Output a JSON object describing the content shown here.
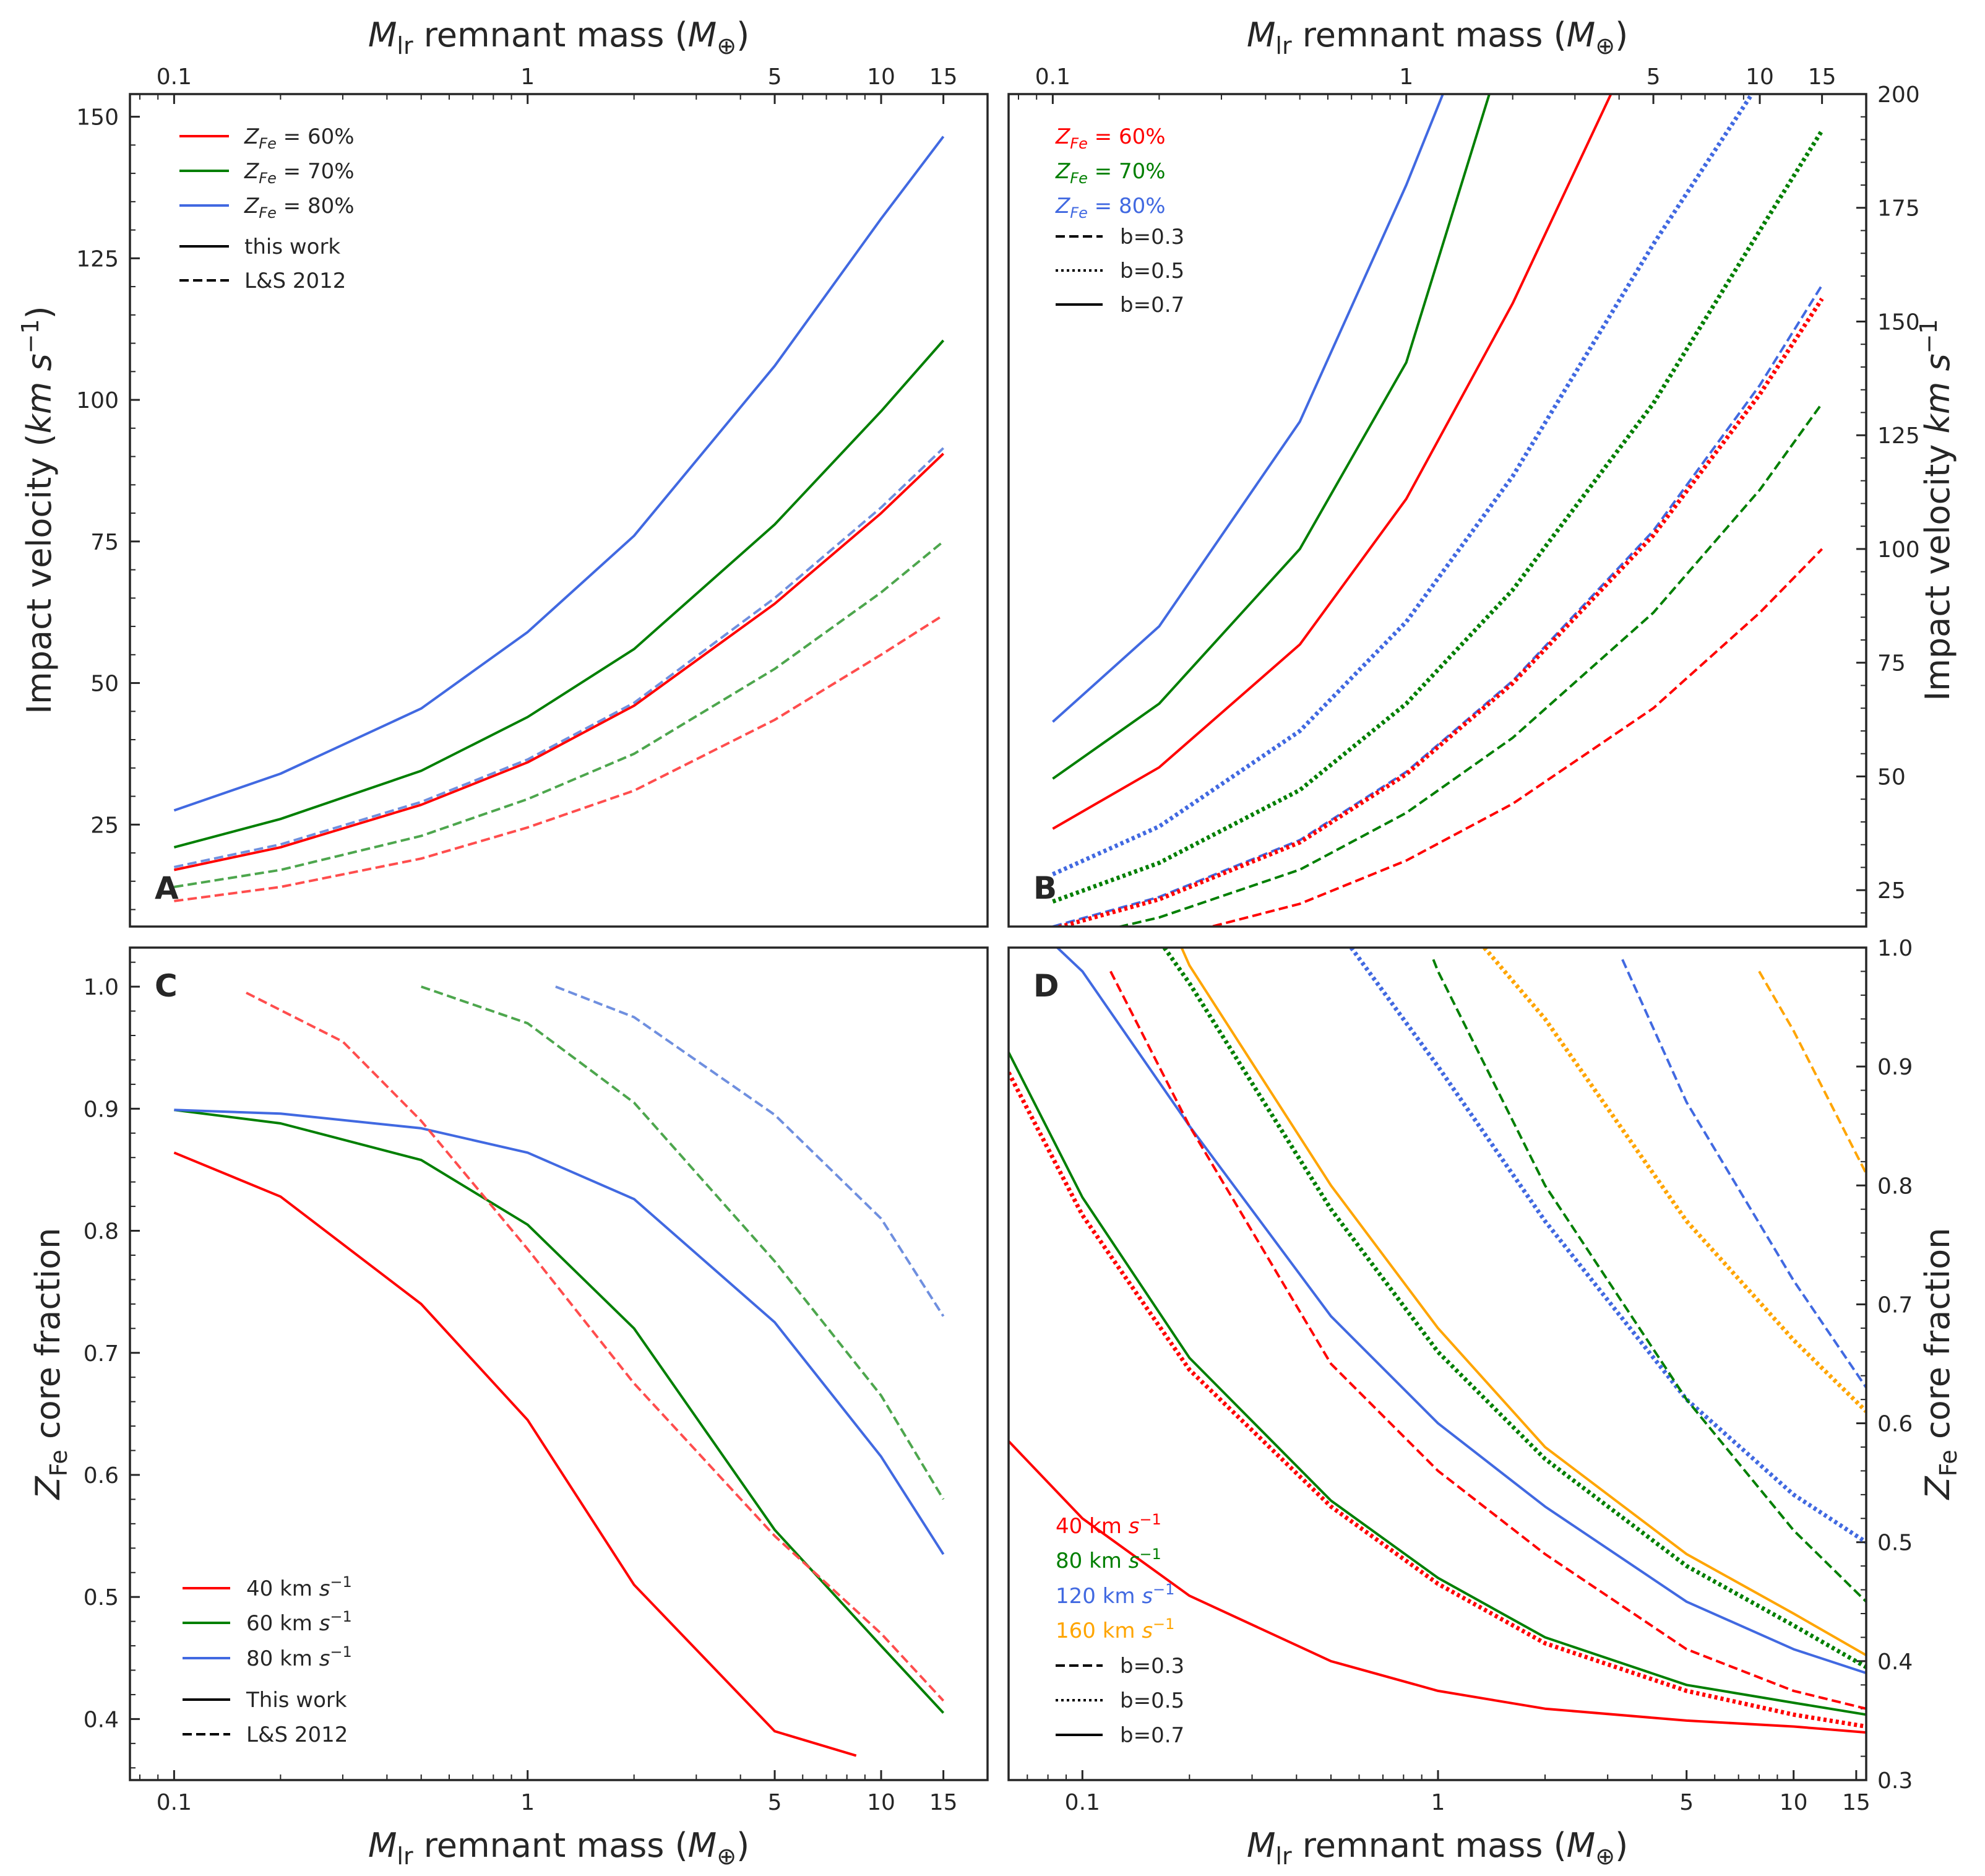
{
  "chart_data": [
    {
      "panel": "A",
      "type": "line",
      "xscale": "log",
      "xlabel": "M_lr remnant mass (M_⊕)",
      "ylabel": "Impact velocity (km s^-1)",
      "xlim": [
        0.075,
        20
      ],
      "ylim": [
        7,
        154
      ],
      "x_ticks": [
        0.1,
        1,
        5,
        10,
        15
      ],
      "x_tick_labels": [
        "0.1",
        "1",
        "5",
        "10",
        "15"
      ],
      "y_ticks": [
        25,
        50,
        75,
        100,
        125,
        150
      ],
      "y_tick_labels": [
        "25",
        "50",
        "75",
        "100",
        "125",
        "150"
      ],
      "legend": {
        "placement": "top-left",
        "entries": [
          {
            "label": "Z_Fe = 60%",
            "color": "#ff0000",
            "style": "solid"
          },
          {
            "label": "Z_Fe = 70%",
            "color": "#007f00",
            "style": "solid"
          },
          {
            "label": "Z_Fe = 80%",
            "color": "#4169e1",
            "style": "solid"
          },
          {
            "label": "this work",
            "color": "#000000",
            "style": "solid"
          },
          {
            "label": "L&S 2012",
            "color": "#000000",
            "style": "dashed"
          }
        ]
      },
      "series": [
        {
          "color": "#4169e1",
          "style": "solid",
          "x": [
            0.1,
            0.2,
            0.5,
            1,
            2,
            5,
            10,
            15
          ],
          "y": [
            27.5,
            34.0,
            45.5,
            59.0,
            76.0,
            106.0,
            132.0,
            146.5
          ]
        },
        {
          "color": "#007f00",
          "style": "solid",
          "x": [
            0.1,
            0.2,
            0.5,
            1,
            2,
            5,
            10,
            15
          ],
          "y": [
            21.0,
            26.0,
            34.5,
            44.0,
            56.0,
            78.0,
            98.0,
            110.5
          ]
        },
        {
          "color": "#ff0000",
          "style": "solid",
          "x": [
            0.1,
            0.2,
            0.5,
            1,
            2,
            5,
            10,
            15
          ],
          "y": [
            17.0,
            21.0,
            28.5,
            36.0,
            46.0,
            64.0,
            80.0,
            90.5
          ]
        },
        {
          "color": "#6f8fdf",
          "style": "dashed",
          "x": [
            0.1,
            0.2,
            0.5,
            1,
            2,
            5,
            10,
            15
          ],
          "y": [
            17.5,
            21.5,
            29.0,
            36.5,
            46.5,
            65.0,
            81.0,
            91.5
          ]
        },
        {
          "color": "#4da64d",
          "style": "dashed",
          "x": [
            0.1,
            0.2,
            0.5,
            1,
            2,
            5,
            10,
            15
          ],
          "y": [
            14.0,
            17.0,
            23.0,
            29.5,
            37.5,
            52.5,
            66.0,
            75.0
          ]
        },
        {
          "color": "#ff4d4d",
          "style": "dashed",
          "x": [
            0.1,
            0.2,
            0.5,
            1,
            2,
            5,
            10,
            15
          ],
          "y": [
            11.5,
            14.0,
            19.0,
            24.5,
            31.0,
            43.5,
            55.0,
            62.0
          ]
        }
      ],
      "annotations": [
        "A"
      ]
    },
    {
      "panel": "B",
      "type": "line",
      "xscale": "log",
      "xlabel": "M_lr remnant mass (M_⊕)",
      "ylabel": "Impact velocity km s^-1",
      "xlim": [
        0.075,
        20
      ],
      "ylim": [
        17,
        200
      ],
      "x_ticks": [
        0.1,
        1,
        5,
        10,
        15
      ],
      "x_tick_labels": [
        "0.1",
        "1",
        "5",
        "10",
        "15"
      ],
      "y_ticks": [
        25,
        50,
        75,
        100,
        125,
        150,
        175,
        200
      ],
      "y_tick_labels": [
        "25",
        "50",
        "75",
        "100",
        "125",
        "150",
        "175",
        "200"
      ],
      "legend": {
        "placement": "top-left",
        "entries": [
          {
            "label": "Z_Fe = 60%",
            "color": "#ff0000",
            "style": "text"
          },
          {
            "label": "Z_Fe = 70%",
            "color": "#007f00",
            "style": "text"
          },
          {
            "label": "Z_Fe = 80%",
            "color": "#4169e1",
            "style": "text"
          },
          {
            "label": "b=0.3",
            "color": "#000000",
            "style": "dashed"
          },
          {
            "label": "b=0.5",
            "color": "#000000",
            "style": "dotted"
          },
          {
            "label": "b=0.7",
            "color": "#000000",
            "style": "solid"
          }
        ]
      },
      "series": [
        {
          "color": "#4169e1",
          "style": "solid",
          "x": [
            0.1,
            0.2,
            0.5,
            1,
            1.3
          ],
          "y": [
            62,
            83,
            128,
            180,
            202
          ]
        },
        {
          "color": "#007f00",
          "style": "solid",
          "x": [
            0.1,
            0.2,
            0.5,
            1,
            1.75
          ],
          "y": [
            49.5,
            66,
            100,
            141,
            202
          ]
        },
        {
          "color": "#ff0000",
          "style": "solid",
          "x": [
            0.1,
            0.2,
            0.5,
            1,
            2,
            3.9
          ],
          "y": [
            38.5,
            52,
            79,
            111,
            154,
            202
          ]
        },
        {
          "color": "#4169e1",
          "style": "dotted",
          "x": [
            0.1,
            0.2,
            0.5,
            1,
            2,
            5,
            9.5
          ],
          "y": [
            28.5,
            39,
            60,
            84,
            116,
            167,
            200
          ]
        },
        {
          "color": "#007f00",
          "style": "dotted",
          "x": [
            0.1,
            0.2,
            0.5,
            1,
            2,
            5,
            10,
            15
          ],
          "y": [
            22.5,
            31,
            47,
            66,
            91,
            132,
            170,
            192
          ]
        },
        {
          "color": "#4169e1",
          "style": "dashed",
          "x": [
            0.1,
            0.2,
            0.5,
            1,
            2,
            5,
            10,
            15
          ],
          "y": [
            17,
            23.5,
            36,
            51,
            71,
            104,
            136,
            158
          ]
        },
        {
          "color": "#ff0000",
          "style": "dotted",
          "x": [
            0.1,
            0.2,
            0.5,
            1,
            2,
            5,
            10,
            15
          ],
          "y": [
            16.5,
            23,
            35.5,
            50.5,
            70.5,
            103,
            134,
            155
          ]
        },
        {
          "color": "#007f00",
          "style": "dashed",
          "x": [
            0.1,
            0.2,
            0.5,
            1,
            2,
            5,
            10,
            15
          ],
          "y": [
            13.5,
            19,
            29.5,
            42,
            58.5,
            86,
            113,
            132
          ]
        },
        {
          "color": "#ff0000",
          "style": "dashed",
          "x": [
            0.1,
            0.2,
            0.5,
            1,
            2,
            5,
            10,
            15
          ],
          "y": [
            10,
            14,
            22,
            31.5,
            44,
            65,
            86,
            100
          ]
        }
      ],
      "annotations": [
        "B"
      ]
    },
    {
      "panel": "C",
      "type": "line",
      "xscale": "log",
      "xlabel": "M_lr remnant mass (M_⊕)",
      "ylabel": "Z_Fe core fraction",
      "xlim": [
        0.075,
        20
      ],
      "ylim": [
        0.35,
        1.032
      ],
      "x_ticks": [
        0.1,
        1,
        5,
        10,
        15
      ],
      "x_tick_labels": [
        "0.1",
        "1",
        "5",
        "10",
        "15"
      ],
      "y_ticks": [
        0.4,
        0.5,
        0.6,
        0.7,
        0.8,
        0.9,
        1.0
      ],
      "y_tick_labels": [
        "0.4",
        "0.5",
        "0.6",
        "0.7",
        "0.8",
        "0.9",
        "1.0"
      ],
      "legend": {
        "placement": "bottom-left",
        "entries": [
          {
            "label": "40 km s^-1",
            "color": "#ff0000",
            "style": "solid"
          },
          {
            "label": "60 km s^-1",
            "color": "#007f00",
            "style": "solid"
          },
          {
            "label": "80 km s^-1",
            "color": "#4169e1",
            "style": "solid"
          },
          {
            "label": "This work",
            "color": "#000000",
            "style": "solid"
          },
          {
            "label": "L&S 2012",
            "color": "#000000",
            "style": "dashed"
          }
        ]
      },
      "series": [
        {
          "color": "#ff0000",
          "style": "solid",
          "x": [
            0.1,
            0.2,
            0.5,
            1,
            2,
            5,
            8.5
          ],
          "y": [
            0.864,
            0.828,
            0.74,
            0.645,
            0.51,
            0.39,
            0.37
          ]
        },
        {
          "color": "#007f00",
          "style": "solid",
          "x": [
            0.1,
            0.2,
            0.5,
            1,
            2,
            5,
            10,
            15
          ],
          "y": [
            0.899,
            0.888,
            0.858,
            0.805,
            0.72,
            0.555,
            0.46,
            0.405
          ]
        },
        {
          "color": "#4169e1",
          "style": "solid",
          "x": [
            0.1,
            0.2,
            0.5,
            1,
            2,
            5,
            10,
            15
          ],
          "y": [
            0.899,
            0.896,
            0.884,
            0.864,
            0.826,
            0.725,
            0.615,
            0.535
          ]
        },
        {
          "color": "#ff4d4d",
          "style": "dashed",
          "x": [
            0.16,
            0.3,
            0.5,
            1,
            2,
            5,
            10,
            15
          ],
          "y": [
            0.995,
            0.955,
            0.89,
            0.785,
            0.675,
            0.55,
            0.47,
            0.415
          ]
        },
        {
          "color": "#4da64d",
          "style": "dashed",
          "x": [
            0.5,
            1,
            2,
            5,
            10,
            15
          ],
          "y": [
            1.0,
            0.97,
            0.905,
            0.775,
            0.665,
            0.58
          ]
        },
        {
          "color": "#6f8fdf",
          "style": "dashed",
          "x": [
            1.2,
            2,
            5,
            10,
            15
          ],
          "y": [
            1.0,
            0.975,
            0.895,
            0.81,
            0.73
          ]
        }
      ],
      "annotations": [
        "C"
      ]
    },
    {
      "panel": "D",
      "type": "line",
      "xscale": "log",
      "xlabel": "M_lr remnant mass (M_⊕)",
      "ylabel": "Z_Fe core fraction",
      "xlim": [
        0.062,
        16
      ],
      "ylim": [
        0.3,
        1.0
      ],
      "x_ticks": [
        0.1,
        1,
        5,
        10,
        15
      ],
      "x_tick_labels": [
        "0.1",
        "1",
        "5",
        "10",
        "15"
      ],
      "y_ticks": [
        0.3,
        0.4,
        0.5,
        0.6,
        0.7,
        0.8,
        0.9,
        1.0
      ],
      "y_tick_labels": [
        "0.3",
        "0.4",
        "0.5",
        "0.6",
        "0.7",
        "0.8",
        "0.9",
        "1.0"
      ],
      "legend": {
        "placement": "bottom-left",
        "entries": [
          {
            "label": "40 km s^-1",
            "color": "#ff0000",
            "style": "text"
          },
          {
            "label": "80 km s^-1",
            "color": "#007f00",
            "style": "text"
          },
          {
            "label": "120 km s^-1",
            "color": "#4169e1",
            "style": "text"
          },
          {
            "label": "160 km s^-1",
            "color": "#ffa500",
            "style": "text"
          },
          {
            "label": "b=0.3",
            "color": "#000000",
            "style": "dashed"
          },
          {
            "label": "b=0.5",
            "color": "#000000",
            "style": "dotted"
          },
          {
            "label": "b=0.7",
            "color": "#000000",
            "style": "solid"
          }
        ]
      },
      "series": [
        {
          "color": "#ff0000",
          "style": "solid",
          "x": [
            0.062,
            0.1,
            0.2,
            0.5,
            1,
            2,
            5,
            10,
            16
          ],
          "y": [
            0.585,
            0.52,
            0.455,
            0.4,
            0.375,
            0.36,
            0.35,
            0.345,
            0.34
          ]
        },
        {
          "color": "#ff0000",
          "style": "dotted",
          "x": [
            0.062,
            0.1,
            0.2,
            0.5,
            1,
            2,
            5,
            10,
            16
          ],
          "y": [
            0.895,
            0.775,
            0.645,
            0.53,
            0.465,
            0.415,
            0.375,
            0.355,
            0.345
          ]
        },
        {
          "color": "#007f00",
          "style": "solid",
          "x": [
            0.062,
            0.1,
            0.2,
            0.5,
            1,
            2,
            5,
            10,
            16
          ],
          "y": [
            0.912,
            0.79,
            0.655,
            0.535,
            0.47,
            0.42,
            0.38,
            0.365,
            0.355
          ]
        },
        {
          "color": "#4169e1",
          "style": "solid",
          "x": [
            0.085,
            0.1,
            0.2,
            0.5,
            1,
            2,
            5,
            10,
            16
          ],
          "y": [
            1.0,
            0.98,
            0.85,
            0.69,
            0.6,
            0.53,
            0.45,
            0.41,
            0.39
          ]
        },
        {
          "color": "#ff0000",
          "style": "dashed",
          "x": [
            0.12,
            0.2,
            0.5,
            1,
            2,
            5,
            10,
            16
          ],
          "y": [
            0.98,
            0.85,
            0.65,
            0.56,
            0.49,
            0.41,
            0.375,
            0.36
          ]
        },
        {
          "color": "#007f00",
          "style": "dotted",
          "x": [
            0.17,
            0.2,
            0.5,
            1,
            2,
            5,
            10,
            16
          ],
          "y": [
            1.0,
            0.97,
            0.78,
            0.66,
            0.57,
            0.48,
            0.43,
            0.395
          ]
        },
        {
          "color": "#ffa500",
          "style": "solid",
          "x": [
            0.19,
            0.2,
            0.5,
            1,
            2,
            5,
            10,
            16
          ],
          "y": [
            1.0,
            0.985,
            0.8,
            0.68,
            0.58,
            0.49,
            0.44,
            0.405
          ]
        },
        {
          "color": "#4169e1",
          "style": "dotted",
          "x": [
            0.57,
            1,
            2,
            5,
            10,
            16
          ],
          "y": [
            1.0,
            0.9,
            0.77,
            0.62,
            0.54,
            0.5
          ]
        },
        {
          "color": "#007f00",
          "style": "dashed",
          "x": [
            0.97,
            1,
            2,
            5,
            10,
            16
          ],
          "y": [
            0.99,
            0.98,
            0.8,
            0.62,
            0.51,
            0.45
          ]
        },
        {
          "color": "#ffa500",
          "style": "dotted",
          "x": [
            1.35,
            2,
            5,
            10,
            16
          ],
          "y": [
            1.0,
            0.94,
            0.77,
            0.67,
            0.61
          ]
        },
        {
          "color": "#4169e1",
          "style": "dashed",
          "x": [
            3.3,
            5,
            10,
            16
          ],
          "y": [
            0.99,
            0.87,
            0.72,
            0.63
          ]
        },
        {
          "color": "#ffa500",
          "style": "dashed",
          "x": [
            8,
            10,
            16
          ],
          "y": [
            0.98,
            0.93,
            0.81
          ]
        }
      ],
      "annotations": [
        "D"
      ]
    }
  ],
  "labels": {
    "xlabel_prefix": "M",
    "xlabel_sub": "lr",
    "xlabel_rest": " remnant mass (",
    "xlabel_unit": "M",
    "xlabel_unit_sub": "⊕",
    "xlabel_close": ")",
    "ylabel_velocity_a": "Impact velocity (",
    "ylabel_velocity_a_unit": "km s",
    "ylabel_velocity_a_close": ")",
    "ylabel_velocity_b": "Impact velocity ",
    "ylabel_velocity_b_unit": "km s",
    "exponent": "−1",
    "ylabel_z": "Z",
    "ylabel_z_sub": "Fe",
    "ylabel_z_rest": " core fraction",
    "legend_zfe_z": "Z",
    "legend_zfe_sub": "Fe",
    "legend_zfe_vals": [
      " = 60%",
      " = 70%",
      " = 80%"
    ],
    "legend_a_extra": [
      "this work",
      "L&S 2012"
    ],
    "legend_b_extra": [
      "b=0.3",
      "b=0.5",
      "b=0.7"
    ],
    "legend_c_speeds": [
      "40 km ",
      "60 km ",
      "80 km "
    ],
    "legend_c_extra": [
      "This work",
      "L&S 2012"
    ],
    "legend_d_speeds": [
      "40 km ",
      "80 km ",
      "120 km ",
      "160 km "
    ],
    "legend_d_extra": [
      "b=0.3",
      "b=0.5",
      "b=0.7"
    ],
    "speed_unit": "s",
    "panel_letters": [
      "A",
      "B",
      "C",
      "D"
    ]
  }
}
